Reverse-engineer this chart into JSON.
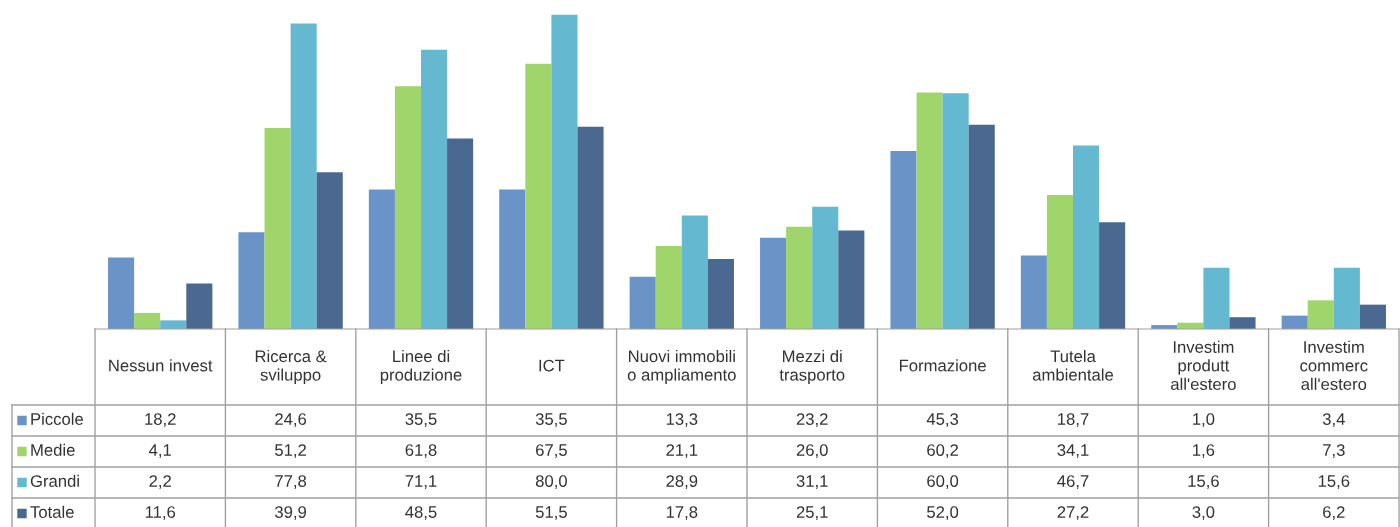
{
  "chart_data": {
    "type": "bar",
    "categories": [
      "Nessun invest",
      "Ricerca &\nsviluppo",
      "Linee di\nproduzione",
      "ICT",
      "Nuovi immobili\no ampliamento",
      "Mezzi di\ntrasporto",
      "Formazione",
      "Tutela\nambientale",
      "Investim\nprodutt\nall'estero",
      "Investim\ncommerc\nall'estero"
    ],
    "series": [
      {
        "name": "Piccole",
        "color": "#6a93c8",
        "values": [
          18.2,
          24.6,
          35.5,
          35.5,
          13.3,
          23.2,
          45.3,
          18.7,
          1.0,
          3.4
        ],
        "value_labels": [
          "18,2",
          "24,6",
          "35,5",
          "35,5",
          "13,3",
          "23,2",
          "45,3",
          "18,7",
          "1,0",
          "3,4"
        ]
      },
      {
        "name": "Medie",
        "color": "#a0d56c",
        "values": [
          4.1,
          51.2,
          61.8,
          67.5,
          21.1,
          26.0,
          60.2,
          34.1,
          1.6,
          7.3
        ],
        "value_labels": [
          "4,1",
          "51,2",
          "61,8",
          "67,5",
          "21,1",
          "26,0",
          "60,2",
          "34,1",
          "1,6",
          "7,3"
        ]
      },
      {
        "name": "Grandi",
        "color": "#64b8d0",
        "values": [
          2.2,
          77.8,
          71.1,
          80.0,
          28.9,
          31.1,
          60.0,
          46.7,
          15.6,
          15.6
        ],
        "value_labels": [
          "2,2",
          "77,8",
          "71,1",
          "80,0",
          "28,9",
          "31,1",
          "60,0",
          "46,7",
          "15,6",
          "15,6"
        ]
      },
      {
        "name": "Totale",
        "color": "#4a6890",
        "values": [
          11.6,
          39.9,
          48.5,
          51.5,
          17.8,
          25.1,
          52.0,
          27.2,
          3.0,
          6.2
        ],
        "value_labels": [
          "11,6",
          "39,9",
          "48,5",
          "51,5",
          "17,8",
          "25,1",
          "52,0",
          "27,2",
          "3,0",
          "6,2"
        ]
      }
    ],
    "legend": "bottom"
  }
}
